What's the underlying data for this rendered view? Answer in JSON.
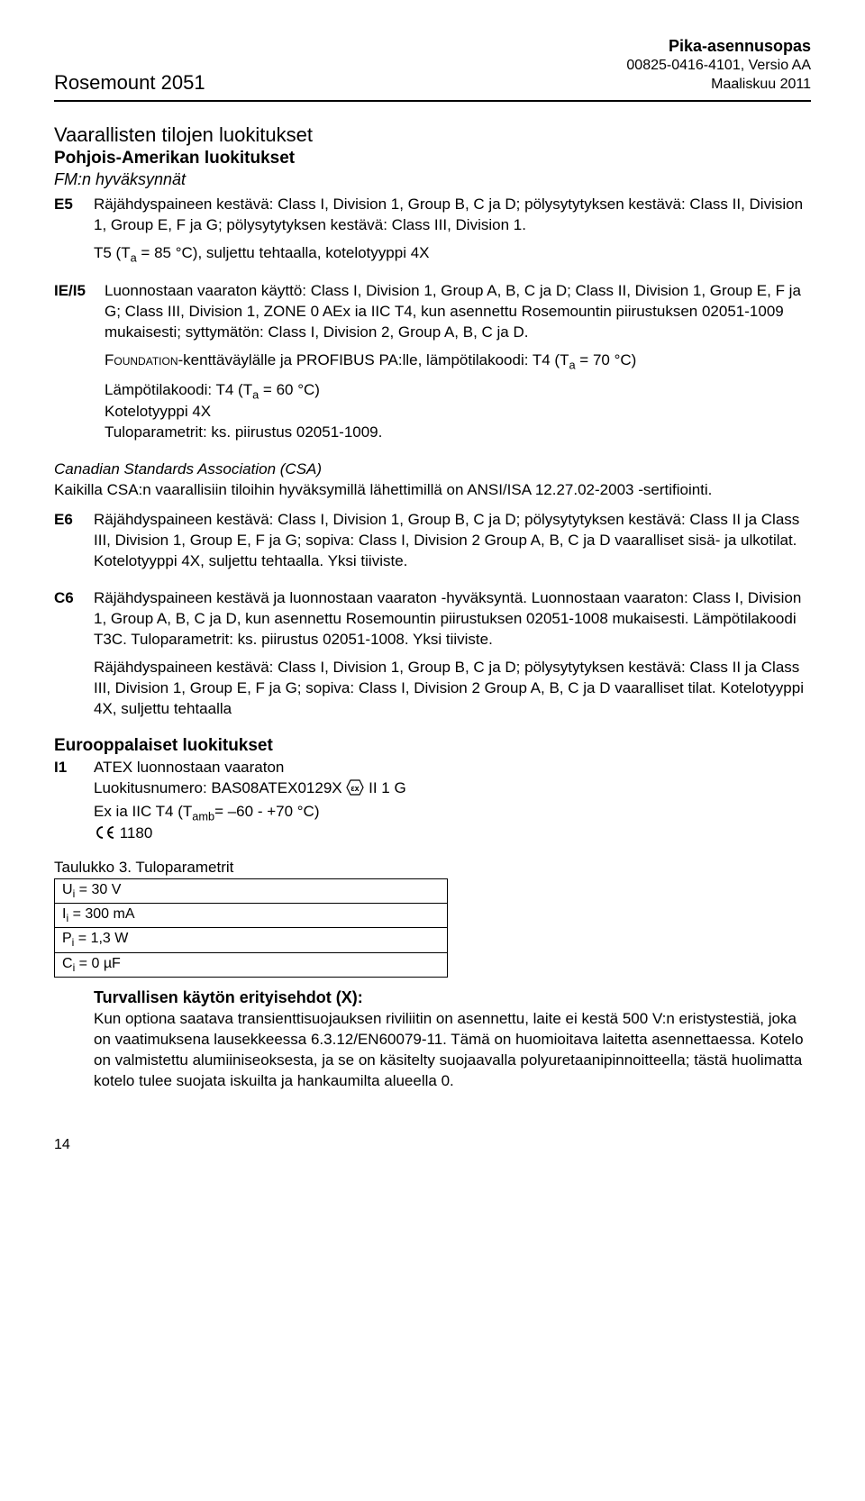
{
  "header": {
    "product": "Rosemount 2051",
    "right_line1": "Pika-asennusopas",
    "right_line2": "00825-0416-4101, Versio AA",
    "right_line3": "Maaliskuu 2011"
  },
  "section_title": "Vaarallisten tilojen luokitukset",
  "sub_bold_na": "Pohjois-Amerikan luokitukset",
  "sub_italic_fm": "FM:n hyväksynnät",
  "e5": {
    "code": "E5",
    "p1": "Räjähdyspaineen kestävä: Class I, Division 1, Group B, C ja D; pölysytytyksen kestävä: Class II, Division 1, Group E, F ja G; pölysytytyksen kestävä: Class III, Division 1.",
    "p2_html": "T5 (T<sub>a</sub> = 85 °C), suljettu tehtaalla, kotelotyyppi 4X"
  },
  "iei5": {
    "code": "IE/I5",
    "p1": "Luonnostaan vaaraton käyttö: Class I, Division 1, Group A, B, C ja D; Class II, Division 1, Group E, F ja G; Class III, Division 1, ZONE 0 AEx ia IIC T4, kun asennettu Rosemountin piirustuksen 02051-1009 mukaisesti; syttymätön: Class I, Division 2, Group A, B, C ja D.",
    "p2_html": "F<span class=\"smallcaps\">oundation</span>-kenttäväylälle ja PROFIBUS PA:lle, lämpötilakoodi: T4 (T<sub>a</sub> = 70 °C)",
    "p3_html": "Lämpötilakoodi: T4 (T<sub>a</sub> = 60 °C)",
    "p4": "Kotelotyyppi 4X",
    "p5": "Tuloparametrit: ks. piirustus 02051-1009."
  },
  "csa_title_italic": "Canadian Standards Association (CSA)",
  "csa_text": "Kaikilla CSA:n vaarallisiin tiloihin hyväksymillä lähettimillä on ANSI/ISA 12.27.02-2003 -sertifiointi.",
  "e6": {
    "code": "E6",
    "body": "Räjähdyspaineen kestävä: Class I, Division 1, Group B, C ja D; pölysytytyksen kestävä: Class II ja Class III, Division 1, Group E, F ja G; sopiva: Class I, Division 2 Group A, B, C ja D vaaralliset sisä- ja ulkotilat. Kotelotyyppi 4X, suljettu tehtaalla. Yksi tiiviste."
  },
  "c6": {
    "code": "C6",
    "p1": "Räjähdyspaineen kestävä ja luonnostaan vaaraton -hyväksyntä. Luonnostaan vaaraton: Class I, Division 1, Group A, B, C ja D, kun asennettu Rosemountin piirustuksen 02051-1008 mukaisesti. Lämpötilakoodi T3C. Tuloparametrit: ks. piirustus 02051-1008. Yksi tiiviste.",
    "p2": "Räjähdyspaineen kestävä: Class I, Division 1, Group B, C ja D; pölysytytyksen kestävä: Class II ja Class III, Division 1, Group E, F ja G; sopiva: Class I, Division 2 Group A, B, C ja D vaaralliset tilat. Kotelotyyppi 4X, suljettu tehtaalla"
  },
  "sub_bold_eu": "Eurooppalaiset luokitukset",
  "i1": {
    "code": "I1",
    "l1": "ATEX luonnostaan vaaraton",
    "l2_before": "Luokitusnumero: BAS08ATEX0129X ",
    "l2_after": " II 1 G",
    "l3_html": "Ex ia IIC T4 (T<sub>amb</sub>= –60 - +70 °C)",
    "l4": " 1180"
  },
  "table": {
    "title": "Taulukko 3.  Tuloparametrit",
    "rows": [
      "U<sub>i</sub> = 30 V",
      "I<sub>i</sub> = 300 mA",
      "P<sub>i</sub> = 1,3 W",
      "C<sub>i</sub> = 0 µF"
    ]
  },
  "safety": {
    "title": "Turvallisen käytön erityisehdot (X):",
    "body": "Kun optiona saatava transienttisuojauksen riviliitin on asennettu, laite ei kestä 500 V:n eristystestiä, joka on vaatimuksena lausekkeessa 6.3.12/EN60079-11. Tämä on huomioitava laitetta asennettaessa. Kotelo on valmistettu alumiiniseoksesta, ja se on käsitelty suojaavalla polyuretaanipinnoitteella; tästä huolimatta kotelo tulee suojata iskuilta ja hankaumilta alueella 0."
  },
  "pagenum": "14"
}
